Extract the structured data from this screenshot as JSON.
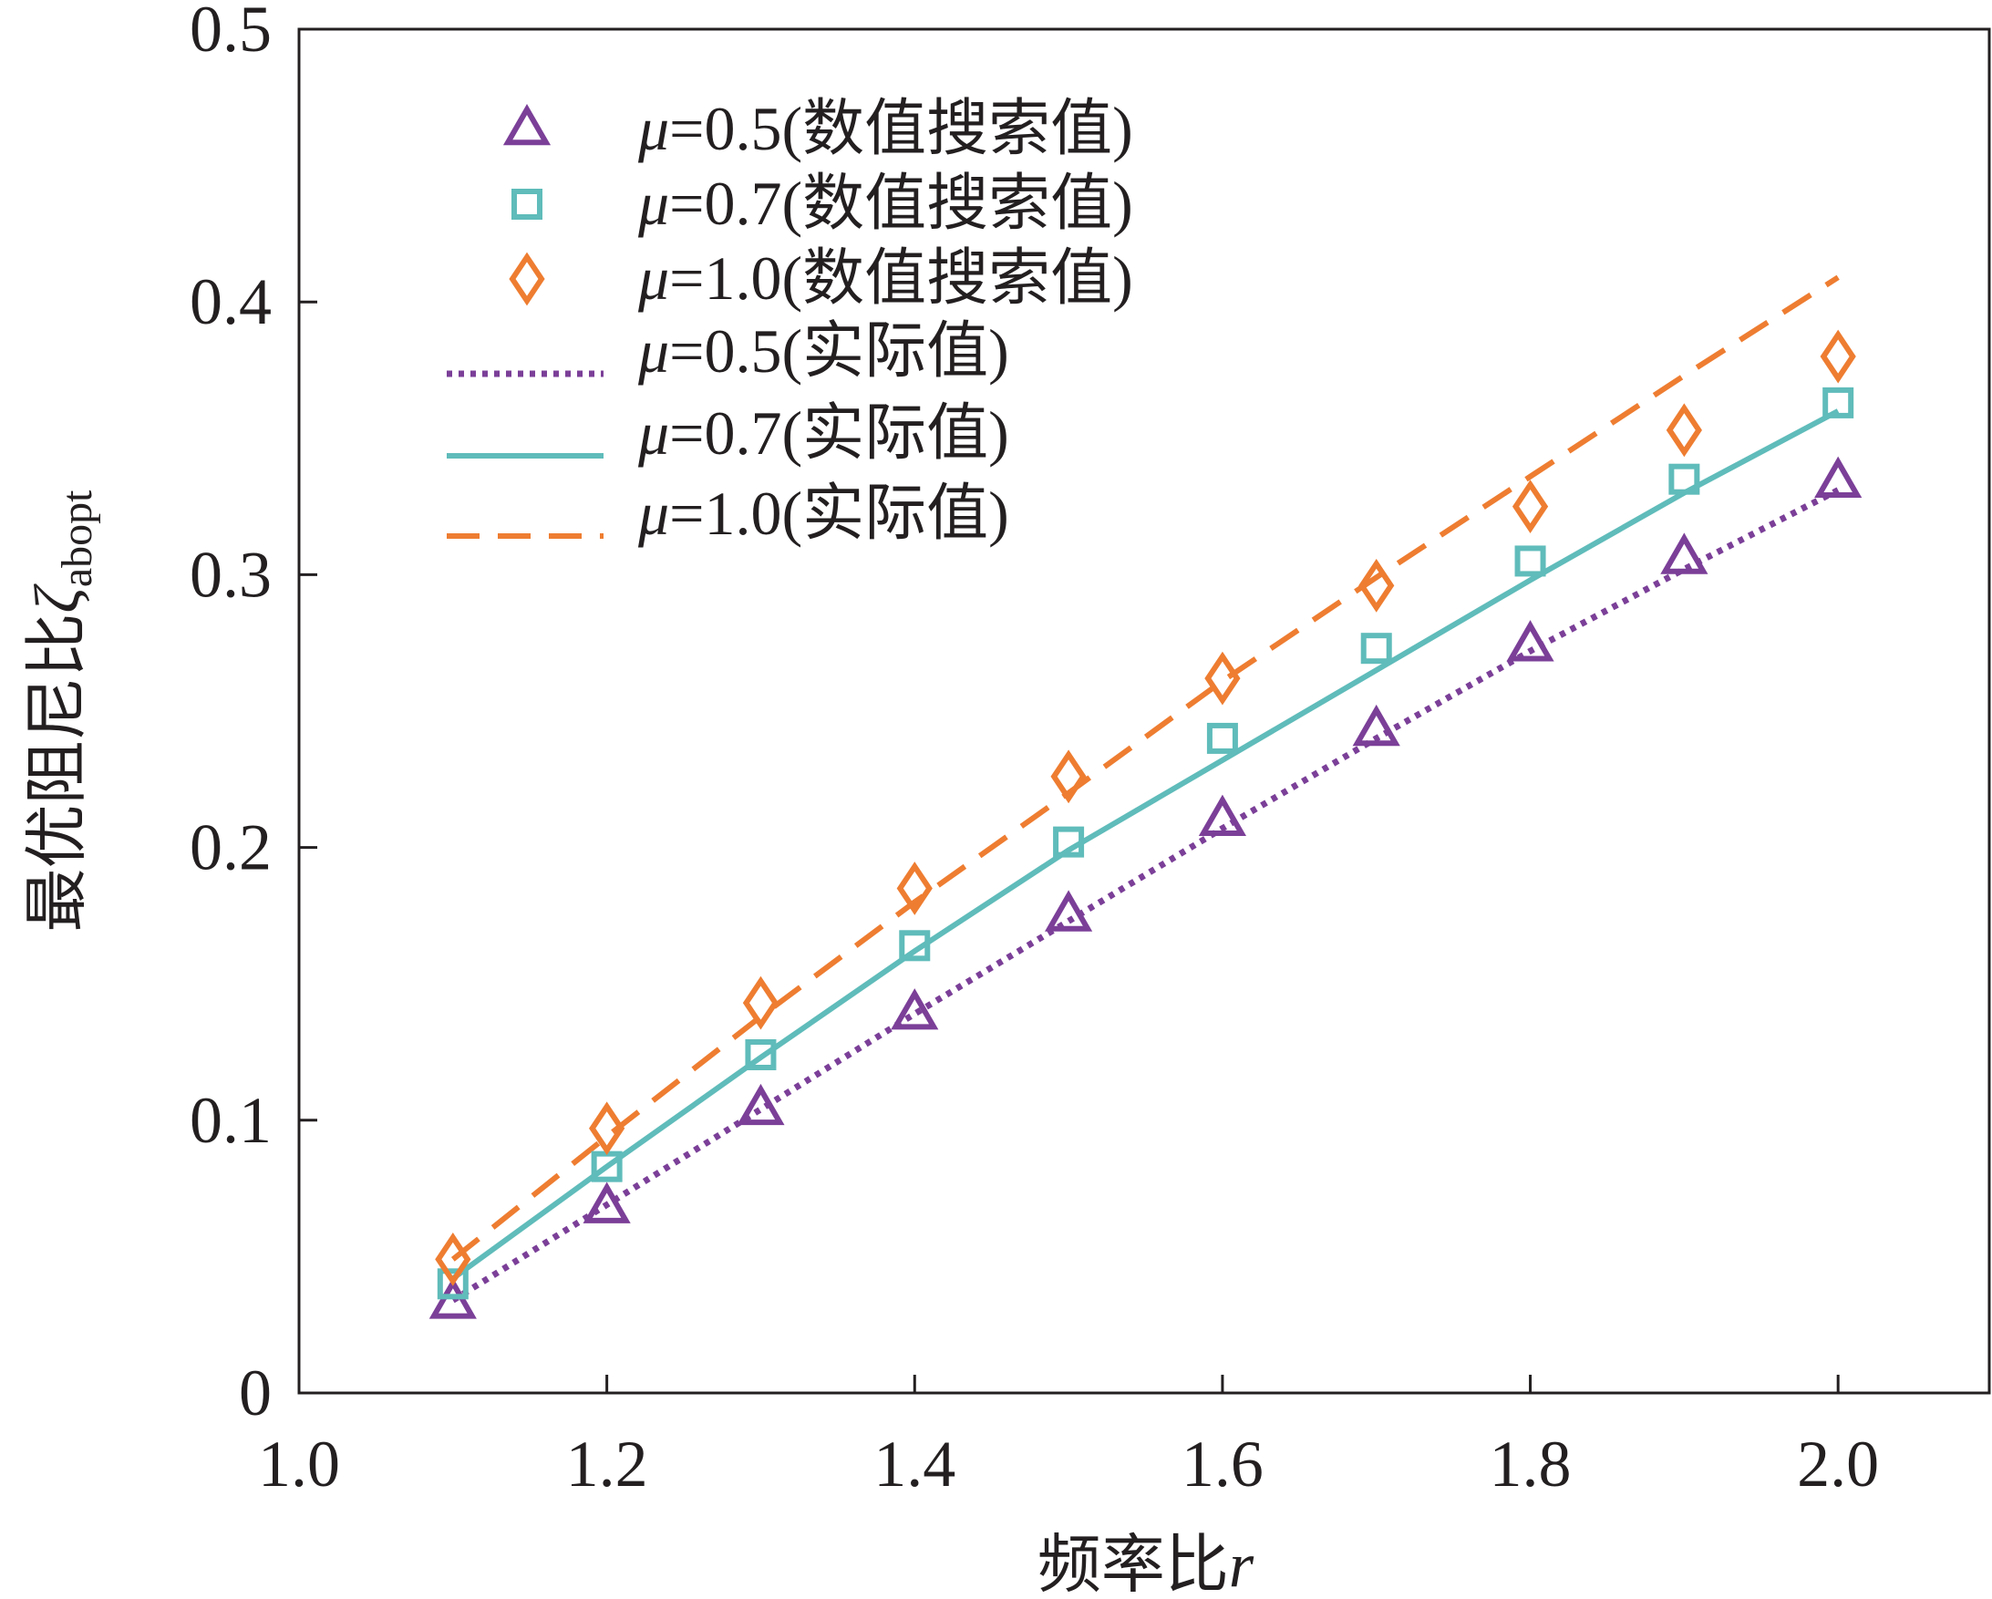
{
  "chart_data": {
    "type": "line",
    "title": "",
    "xlabel": "频率比r",
    "xlabel_parts": {
      "text": "频率比",
      "var": "r"
    },
    "ylabel": "最优阻尼比ζabopt",
    "ylabel_parts": {
      "text": "最优阻尼比",
      "var": "ζ",
      "sub": "abopt"
    },
    "xlim": [
      1.0,
      2.1
    ],
    "ylim": [
      0,
      0.5
    ],
    "xticks": [
      1.0,
      1.2,
      1.4,
      1.6,
      1.8,
      2.0
    ],
    "xtick_labels": [
      "1.0",
      "1.2",
      "1.4",
      "1.6",
      "1.8",
      "2.0"
    ],
    "yticks": [
      0,
      0.1,
      0.2,
      0.3,
      0.4,
      0.5
    ],
    "ytick_labels": [
      "0",
      "0.1",
      "0.2",
      "0.3",
      "0.4",
      "0.5"
    ],
    "legend_position": "top-left",
    "grid": false,
    "x": [
      1.1,
      1.2,
      1.3,
      1.4,
      1.5,
      1.6,
      1.7,
      1.8,
      1.9,
      2.0
    ],
    "series": [
      {
        "name": "μ=0.5(数值搜索值)",
        "mu_symbol": "μ",
        "label_rest": "=0.5(数值搜索值)",
        "kind": "scatter",
        "marker": "triangle",
        "color": "#7b3f98",
        "values": [
          0.033,
          0.068,
          0.104,
          0.139,
          0.175,
          0.21,
          0.243,
          0.274,
          0.306,
          0.334
        ]
      },
      {
        "name": "μ=0.7(数值搜索值)",
        "mu_symbol": "μ",
        "label_rest": "=0.7(数值搜索值)",
        "kind": "scatter",
        "marker": "square",
        "color": "#5fbcba",
        "values": [
          0.04,
          0.083,
          0.124,
          0.164,
          0.202,
          0.24,
          0.273,
          0.305,
          0.335,
          0.363
        ]
      },
      {
        "name": "μ=1.0(数值搜索值)",
        "mu_symbol": "μ",
        "label_rest": "=1.0(数值搜索值)",
        "kind": "scatter",
        "marker": "diamond",
        "color": "#ee7d31",
        "values": [
          0.049,
          0.097,
          0.143,
          0.185,
          0.226,
          0.262,
          0.296,
          0.325,
          0.353,
          0.38
        ]
      },
      {
        "name": "μ=0.5(实际值)",
        "mu_symbol": "μ",
        "label_rest": "=0.5(实际值)",
        "kind": "line",
        "style": "dotted",
        "color": "#7b3f98",
        "values": [
          0.034,
          0.069,
          0.104,
          0.139,
          0.173,
          0.207,
          0.24,
          0.272,
          0.302,
          0.331
        ]
      },
      {
        "name": "μ=0.7(实际值)",
        "mu_symbol": "μ",
        "label_rest": "=0.7(实际值)",
        "kind": "line",
        "style": "solid",
        "color": "#5fbcba",
        "values": [
          0.042,
          0.083,
          0.123,
          0.162,
          0.199,
          0.232,
          0.265,
          0.298,
          0.33,
          0.36
        ]
      },
      {
        "name": "μ=1.0(实际值)",
        "mu_symbol": "μ",
        "label_rest": "=1.0(实际值)",
        "kind": "line",
        "style": "dashed",
        "color": "#ee7d31",
        "values": [
          0.049,
          0.094,
          0.138,
          0.18,
          0.22,
          0.261,
          0.299,
          0.336,
          0.373,
          0.409
        ]
      }
    ]
  }
}
